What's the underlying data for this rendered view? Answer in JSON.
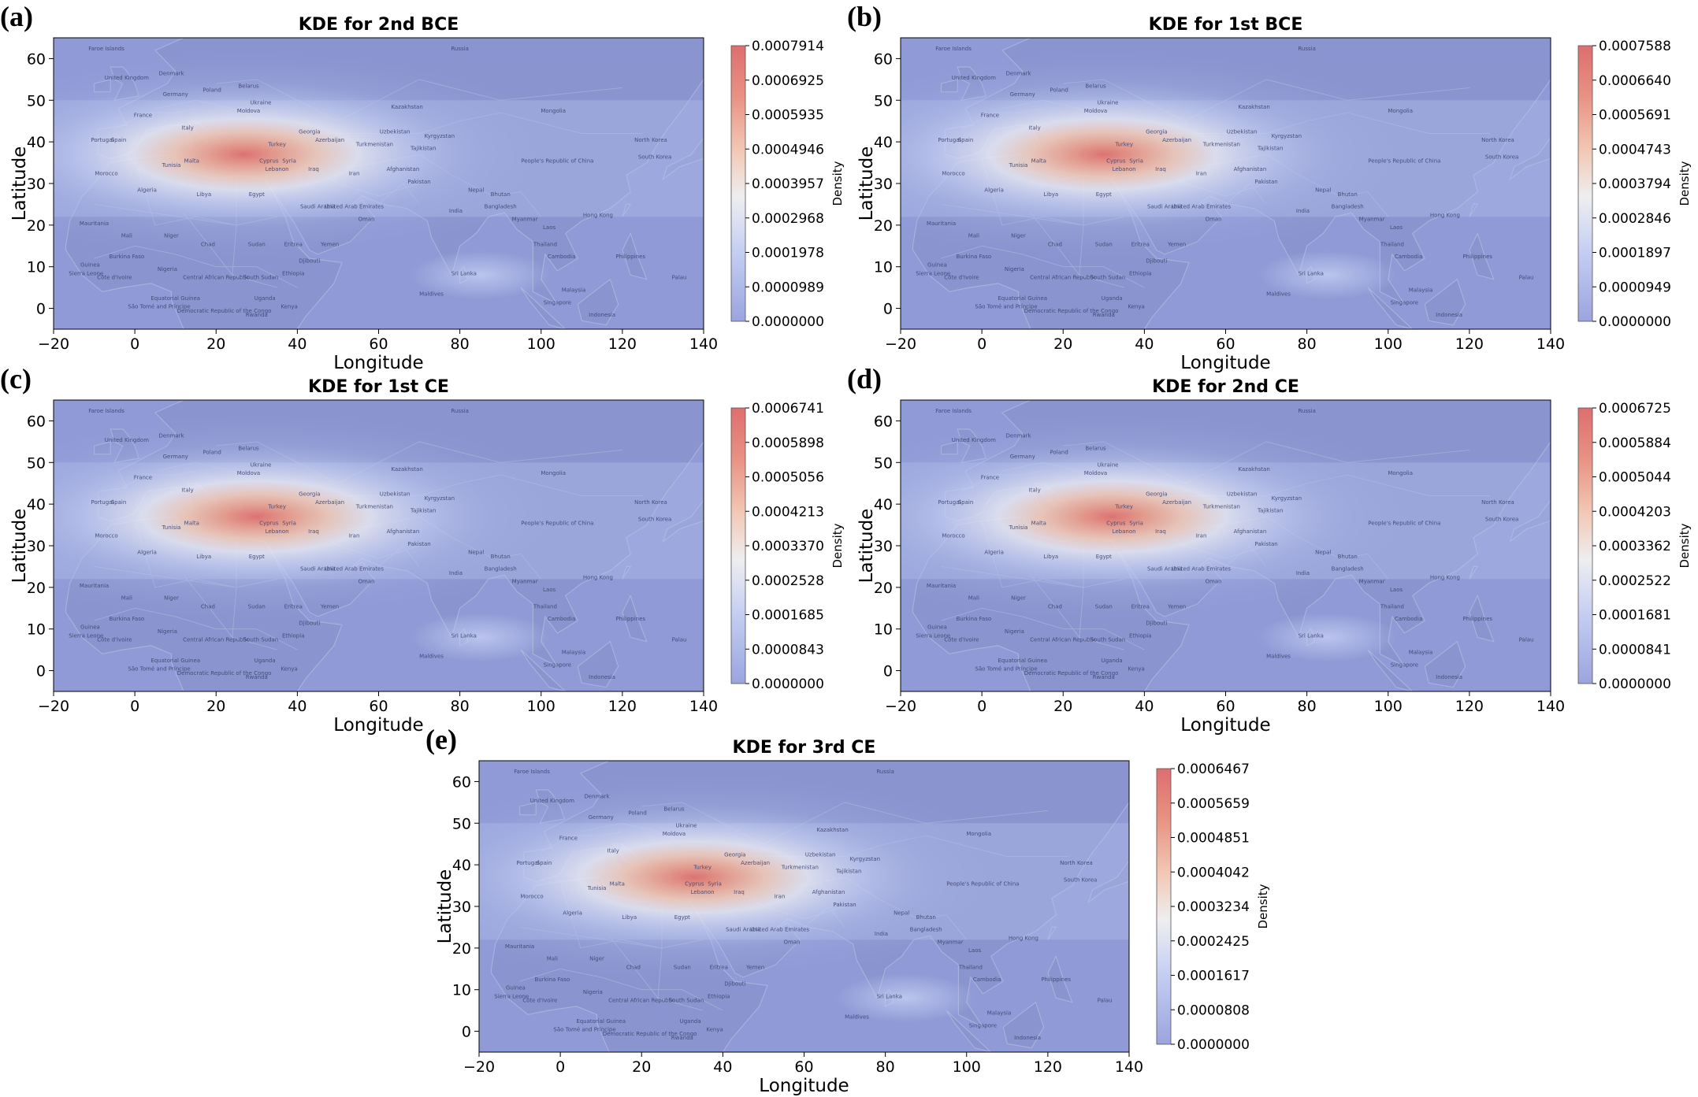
{
  "chart_data": [
    {
      "panel": "(a)",
      "type": "heatmap",
      "title": "KDE for 2nd BCE",
      "xlabel": "Longitude",
      "ylabel": "Latitude",
      "xlim": [
        -20,
        140
      ],
      "ylim": [
        -5,
        65
      ],
      "xticks": [
        "−20",
        "0",
        "20",
        "40",
        "60",
        "80",
        "100",
        "120",
        "140"
      ],
      "yticks": [
        "0",
        "10",
        "20",
        "30",
        "40",
        "50",
        "60"
      ],
      "colorbar_label": "Density",
      "colorbar_ticks": [
        "0.0007914",
        "0.0006925",
        "0.0005935",
        "0.0004946",
        "0.0003957",
        "0.0002968",
        "0.0001978",
        "0.0000989",
        "0.0000000"
      ],
      "peak": {
        "lon": 27,
        "lat": 37
      }
    },
    {
      "panel": "(b)",
      "type": "heatmap",
      "title": "KDE for 1st BCE",
      "xlabel": "Longitude",
      "ylabel": "Latitude",
      "xlim": [
        -20,
        140
      ],
      "ylim": [
        -5,
        65
      ],
      "xticks": [
        "−20",
        "0",
        "20",
        "40",
        "60",
        "80",
        "100",
        "120",
        "140"
      ],
      "yticks": [
        "0",
        "10",
        "20",
        "30",
        "40",
        "50",
        "60"
      ],
      "colorbar_label": "Density",
      "colorbar_ticks": [
        "0.0007588",
        "0.0006640",
        "0.0005691",
        "0.0004743",
        "0.0003794",
        "0.0002846",
        "0.0001897",
        "0.0000949",
        "0.0000000"
      ],
      "peak": {
        "lon": 30,
        "lat": 37
      }
    },
    {
      "panel": "(c)",
      "type": "heatmap",
      "title": "KDE for 1st CE",
      "xlabel": "Longitude",
      "ylabel": "Latitude",
      "xlim": [
        -20,
        140
      ],
      "ylim": [
        -5,
        65
      ],
      "xticks": [
        "−20",
        "0",
        "20",
        "40",
        "60",
        "80",
        "100",
        "120",
        "140"
      ],
      "yticks": [
        "0",
        "10",
        "20",
        "30",
        "40",
        "50",
        "60"
      ],
      "colorbar_label": "Density",
      "colorbar_ticks": [
        "0.0006741",
        "0.0005898",
        "0.0005056",
        "0.0004213",
        "0.0003370",
        "0.0002528",
        "0.0001685",
        "0.0000843",
        "0.0000000"
      ],
      "peak": {
        "lon": 30,
        "lat": 37
      }
    },
    {
      "panel": "(d)",
      "type": "heatmap",
      "title": "KDE for 2nd CE",
      "xlabel": "Longitude",
      "ylabel": "Latitude",
      "xlim": [
        -20,
        140
      ],
      "ylim": [
        -5,
        65
      ],
      "xticks": [
        "−20",
        "0",
        "20",
        "40",
        "60",
        "80",
        "100",
        "120",
        "140"
      ],
      "yticks": [
        "0",
        "10",
        "20",
        "30",
        "40",
        "50",
        "60"
      ],
      "colorbar_label": "Density",
      "colorbar_ticks": [
        "0.0006725",
        "0.0005884",
        "0.0005044",
        "0.0004203",
        "0.0003362",
        "0.0002522",
        "0.0001681",
        "0.0000841",
        "0.0000000"
      ],
      "peak": {
        "lon": 32,
        "lat": 37
      }
    },
    {
      "panel": "(e)",
      "type": "heatmap",
      "title": "KDE for 3rd CE",
      "xlabel": "Longitude",
      "ylabel": "Latitude",
      "xlim": [
        -20,
        140
      ],
      "ylim": [
        -5,
        65
      ],
      "xticks": [
        "−20",
        "0",
        "20",
        "40",
        "60",
        "80",
        "100",
        "120",
        "140"
      ],
      "yticks": [
        "0",
        "10",
        "20",
        "30",
        "40",
        "50",
        "60"
      ],
      "colorbar_label": "Density",
      "colorbar_ticks": [
        "0.0006467",
        "0.0005659",
        "0.0004851",
        "0.0004042",
        "0.0003234",
        "0.0002425",
        "0.0001617",
        "0.0000808",
        "0.0000000"
      ],
      "peak": {
        "lon": 33,
        "lat": 37
      }
    }
  ],
  "map_labels": [
    {
      "text": "Faroe Islands",
      "lon": -7,
      "lat": 62
    },
    {
      "text": "Russia",
      "lon": 80,
      "lat": 62
    },
    {
      "text": "United Kingdom",
      "lon": -2,
      "lat": 55
    },
    {
      "text": "Denmark",
      "lon": 9,
      "lat": 56
    },
    {
      "text": "Poland",
      "lon": 19,
      "lat": 52
    },
    {
      "text": "Belarus",
      "lon": 28,
      "lat": 53
    },
    {
      "text": "Ukraine",
      "lon": 31,
      "lat": 49
    },
    {
      "text": "Kazakhstan",
      "lon": 67,
      "lat": 48
    },
    {
      "text": "Mongolia",
      "lon": 103,
      "lat": 47
    },
    {
      "text": "France",
      "lon": 2,
      "lat": 46
    },
    {
      "text": "Germany",
      "lon": 10,
      "lat": 51
    },
    {
      "text": "Moldova",
      "lon": 28,
      "lat": 47
    },
    {
      "text": "Portugal",
      "lon": -8,
      "lat": 40
    },
    {
      "text": "Spain",
      "lon": -4,
      "lat": 40
    },
    {
      "text": "Italy",
      "lon": 13,
      "lat": 43
    },
    {
      "text": "Turkey",
      "lon": 35,
      "lat": 39
    },
    {
      "text": "Georgia",
      "lon": 43,
      "lat": 42
    },
    {
      "text": "Azerbaijan",
      "lon": 48,
      "lat": 40
    },
    {
      "text": "Uzbekistan",
      "lon": 64,
      "lat": 42
    },
    {
      "text": "Kyrgyzstan",
      "lon": 75,
      "lat": 41
    },
    {
      "text": "Turkmenistan",
      "lon": 59,
      "lat": 39
    },
    {
      "text": "Tajikistan",
      "lon": 71,
      "lat": 38
    },
    {
      "text": "North Korea",
      "lon": 127,
      "lat": 40
    },
    {
      "text": "South Korea",
      "lon": 128,
      "lat": 36
    },
    {
      "text": "People's Republic of China",
      "lon": 104,
      "lat": 35
    },
    {
      "text": "Malta",
      "lon": 14,
      "lat": 35
    },
    {
      "text": "Cyprus",
      "lon": 33,
      "lat": 35
    },
    {
      "text": "Syria",
      "lon": 38,
      "lat": 35
    },
    {
      "text": "Lebanon",
      "lon": 35,
      "lat": 33
    },
    {
      "text": "Iraq",
      "lon": 44,
      "lat": 33
    },
    {
      "text": "Iran",
      "lon": 54,
      "lat": 32
    },
    {
      "text": "Afghanistan",
      "lon": 66,
      "lat": 33
    },
    {
      "text": "Morocco",
      "lon": -7,
      "lat": 32
    },
    {
      "text": "Tunisia",
      "lon": 9,
      "lat": 34
    },
    {
      "text": "Algeria",
      "lon": 3,
      "lat": 28
    },
    {
      "text": "Libya",
      "lon": 17,
      "lat": 27
    },
    {
      "text": "Egypt",
      "lon": 30,
      "lat": 27
    },
    {
      "text": "Pakistan",
      "lon": 70,
      "lat": 30
    },
    {
      "text": "Nepal",
      "lon": 84,
      "lat": 28
    },
    {
      "text": "Bhutan",
      "lon": 90,
      "lat": 27
    },
    {
      "text": "Bangladesh",
      "lon": 90,
      "lat": 24
    },
    {
      "text": "Saudi Arabia",
      "lon": 45,
      "lat": 24
    },
    {
      "text": "United Arab Emirates",
      "lon": 54,
      "lat": 24
    },
    {
      "text": "Oman",
      "lon": 57,
      "lat": 21
    },
    {
      "text": "India",
      "lon": 79,
      "lat": 23
    },
    {
      "text": "Myanmar",
      "lon": 96,
      "lat": 21
    },
    {
      "text": "Hong Kong",
      "lon": 114,
      "lat": 22
    },
    {
      "text": "Laos",
      "lon": 102,
      "lat": 19
    },
    {
      "text": "Thailand",
      "lon": 101,
      "lat": 15
    },
    {
      "text": "Cambodia",
      "lon": 105,
      "lat": 12
    },
    {
      "text": "Mauritania",
      "lon": -10,
      "lat": 20
    },
    {
      "text": "Mali",
      "lon": -2,
      "lat": 17
    },
    {
      "text": "Niger",
      "lon": 9,
      "lat": 17
    },
    {
      "text": "Chad",
      "lon": 18,
      "lat": 15
    },
    {
      "text": "Sudan",
      "lon": 30,
      "lat": 15
    },
    {
      "text": "Eritrea",
      "lon": 39,
      "lat": 15
    },
    {
      "text": "Yemen",
      "lon": 48,
      "lat": 15
    },
    {
      "text": "Djibouti",
      "lon": 43,
      "lat": 11
    },
    {
      "text": "Ethiopia",
      "lon": 39,
      "lat": 8
    },
    {
      "text": "Burkina Faso",
      "lon": -2,
      "lat": 12
    },
    {
      "text": "Nigeria",
      "lon": 8,
      "lat": 9
    },
    {
      "text": "Guinea",
      "lon": -11,
      "lat": 10
    },
    {
      "text": "Sierra Leone",
      "lon": -12,
      "lat": 8
    },
    {
      "text": "Côte d'Ivoire",
      "lon": -5,
      "lat": 7
    },
    {
      "text": "Central African Republic",
      "lon": 20,
      "lat": 7
    },
    {
      "text": "South Sudan",
      "lon": 31,
      "lat": 7
    },
    {
      "text": "Sri Lanka",
      "lon": 81,
      "lat": 8
    },
    {
      "text": "Philippines",
      "lon": 122,
      "lat": 12
    },
    {
      "text": "Palau",
      "lon": 134,
      "lat": 7
    },
    {
      "text": "Maldives",
      "lon": 73,
      "lat": 3
    },
    {
      "text": "Malaysia",
      "lon": 108,
      "lat": 4
    },
    {
      "text": "Singapore",
      "lon": 104,
      "lat": 1
    },
    {
      "text": "Equatorial Guinea",
      "lon": 10,
      "lat": 2
    },
    {
      "text": "Democratic Republic of the Congo",
      "lon": 22,
      "lat": -1
    },
    {
      "text": "Uganda",
      "lon": 32,
      "lat": 2
    },
    {
      "text": "Kenya",
      "lon": 38,
      "lat": 0
    },
    {
      "text": "Rwanda",
      "lon": 30,
      "lat": -2
    },
    {
      "text": "Indonesia",
      "lon": 115,
      "lat": -2
    },
    {
      "text": "São Tomé and Príncipe",
      "lon": 6,
      "lat": 0
    }
  ]
}
